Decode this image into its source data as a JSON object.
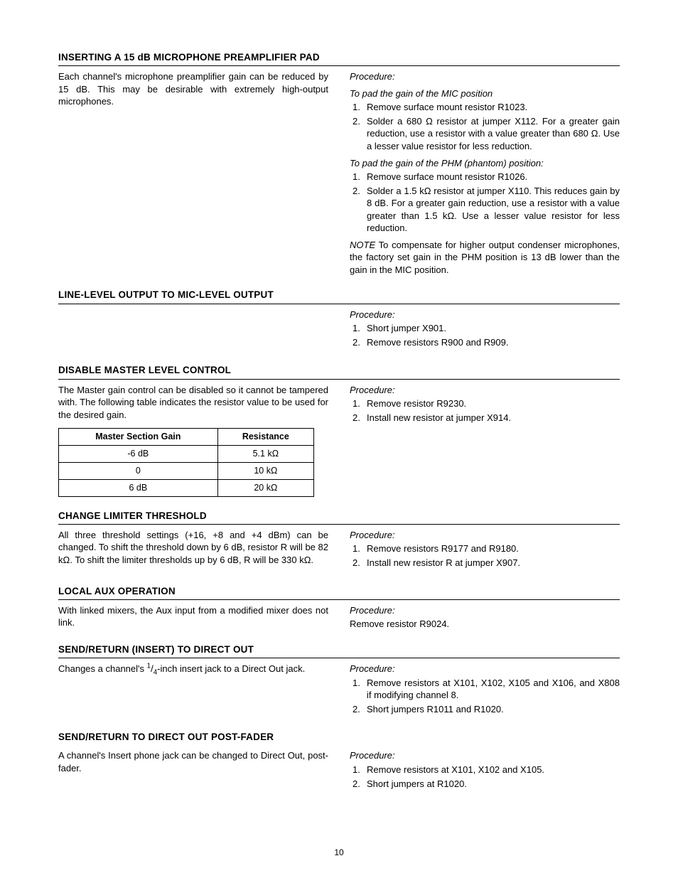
{
  "page_number": "10",
  "sections": {
    "s1": {
      "title": "INSERTING A 15 dB MICROPHONE PREAMPLIFIER PAD",
      "left_body": "Each channel's microphone preamplifier gain can be reduced by 15 dB. This may be desirable with extremely high-output microphones.",
      "proc_label": "Procedure:",
      "sub1_label": "To pad the gain of the MIC position",
      "sub1_items": [
        "Remove surface mount resistor R1023.",
        "Solder a 680 Ω resistor at jumper X112. For a greater gain reduction, use a resistor with a value greater than 680 Ω. Use a lesser value resistor for less reduction."
      ],
      "sub2_label": "To pad the gain of the PHM (phantom) position:",
      "sub2_items": [
        "Remove surface mount resistor R1026.",
        "Solder a 1.5 kΩ resistor at jumper X110.  This reduces gain by 8 dB. For a greater gain reduction, use a resistor with a value greater than 1.5 kΩ. Use a lesser value resistor for less reduction."
      ],
      "note_lead": "NOTE",
      "note_body": " To compensate for higher output condenser microphones, the factory set gain in the PHM position is 13 dB lower than the gain in the MIC position."
    },
    "s2": {
      "title": "LINE-LEVEL OUTPUT TO MIC-LEVEL OUTPUT",
      "proc_label": "Procedure:",
      "items": [
        "Short jumper X901.",
        "Remove resistors R900 and R909."
      ]
    },
    "s3": {
      "title": "DISABLE MASTER LEVEL CONTROL",
      "left_body": "The Master gain control can be disabled so it cannot be tampered with. The following  table indicates the resistor value to be used for the desired gain.",
      "proc_label": "Procedure:",
      "items": [
        "Remove resistor R9230.",
        "Install new resistor at jumper X914."
      ],
      "table": {
        "headers": [
          "Master Section Gain",
          "Resistance"
        ],
        "rows": [
          [
            "-6 dB",
            "5.1 kΩ"
          ],
          [
            "0",
            "10 kΩ"
          ],
          [
            "6 dB",
            "20 kΩ"
          ]
        ]
      }
    },
    "s4": {
      "title": "CHANGE LIMITER THRESHOLD",
      "left_body": "All three threshold settings (+16, +8 and +4 dBm) can be changed. To shift the threshold down by 6 dB, resistor R will be 82 kΩ. To shift the limiter thresholds up by 6 dB, R will be 330 kΩ.",
      "proc_label": "Procedure:",
      "items": [
        "Remove resistors R9177 and R9180.",
        "Install new resistor R at jumper X907."
      ]
    },
    "s5": {
      "title": "LOCAL AUX OPERATION",
      "left_body": "With linked mixers, the Aux input from a modified mixer does not link.",
      "proc_label": "Procedure:",
      "right_body": "Remove resistor R9024."
    },
    "s6": {
      "title": "SEND/RETURN (INSERT) TO DIRECT OUT",
      "left_body_html": "Changes a channel's <sup>1</sup>/<sub>4</sub>-inch insert jack to a Direct Out jack.",
      "proc_label": "Procedure:",
      "items": [
        "Remove resistors at X101, X102, X105 and X106, and X808 if modifying channel 8.",
        "Short jumpers R1011 and R1020."
      ]
    },
    "s7": {
      "title": "SEND/RETURN TO DIRECT OUT POST-FADER",
      "left_body": "A channel's Insert phone jack can be changed to Direct Out, post-fader.",
      "proc_label": "Procedure:",
      "items": [
        "Remove resistors at X101, X102 and X105.",
        "Short jumpers at R1020."
      ]
    }
  }
}
